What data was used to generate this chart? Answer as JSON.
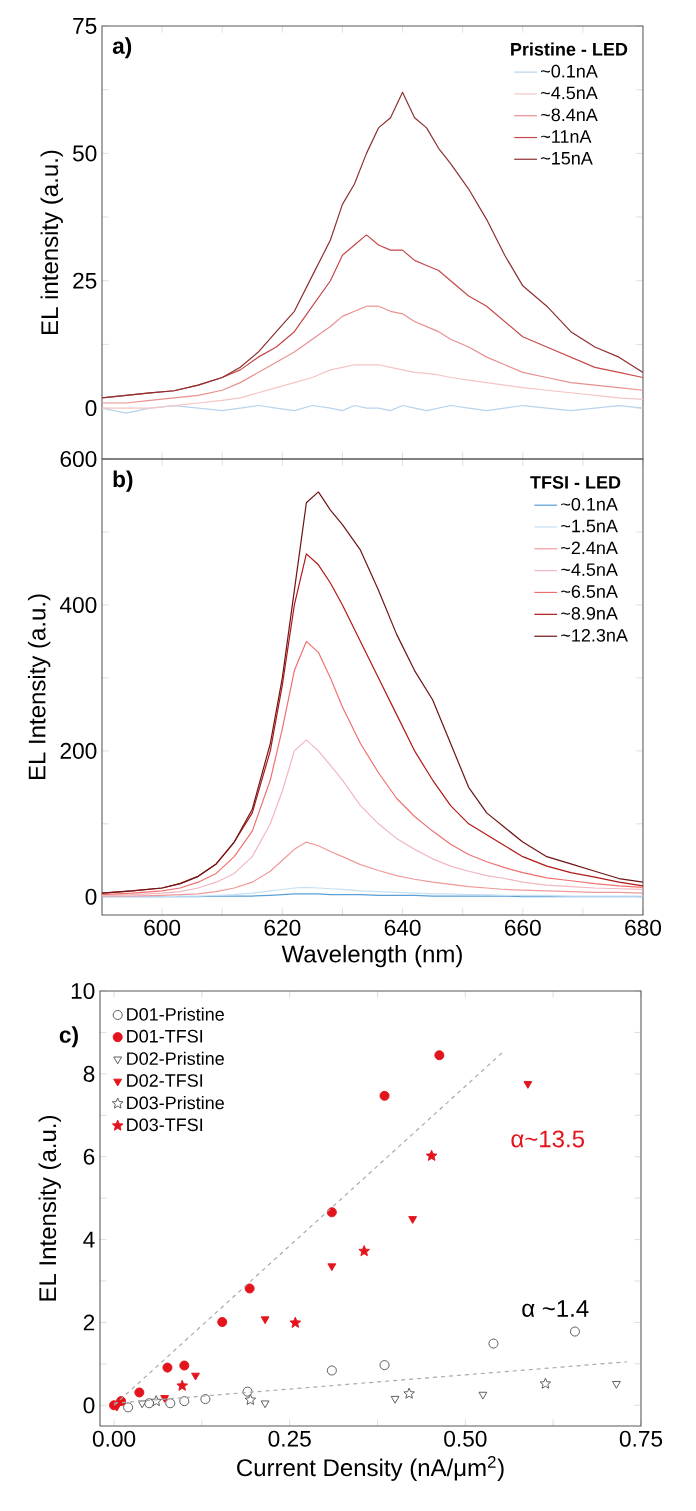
{
  "chart_data": [
    {
      "type": "line",
      "ylabel": "EL intensity (a.u.)",
      "legend_title": "Pristine - LED",
      "legend": "top right",
      "tick_labels": "y",
      "annotations": [
        "a)"
      ],
      "xlim": [
        590,
        680
      ],
      "ylim": [
        -10,
        75
      ],
      "xticks": [
        {
          "value": 600,
          "label": null
        },
        {
          "value": 610,
          "label": null
        },
        {
          "value": 620,
          "label": null
        },
        {
          "value": 630,
          "label": null
        },
        {
          "value": 640,
          "label": null
        },
        {
          "value": 650,
          "label": null
        },
        {
          "value": 660,
          "label": null
        },
        {
          "value": 670,
          "label": null
        }
      ],
      "yticks": [
        0,
        {
          "value": 12.5,
          "label": null
        },
        25,
        {
          "value": 37.5,
          "label": null
        },
        50,
        {
          "value": 62.5,
          "label": null
        },
        75
      ],
      "x": [
        590,
        594,
        598,
        602,
        606,
        610,
        613,
        616,
        619,
        622,
        625,
        628,
        630,
        632,
        634,
        636,
        638,
        640,
        642,
        644,
        646,
        648,
        651,
        654,
        657,
        660,
        664,
        668,
        672,
        676,
        680
      ],
      "series": [
        {
          "name": "~0.1nA",
          "color": "#b9d3ec",
          "values": [
            0,
            -1,
            0,
            0.5,
            0,
            -0.5,
            0,
            0.5,
            0,
            -0.5,
            0.5,
            0,
            -0.5,
            0.5,
            0,
            0,
            -0.5,
            0.5,
            0,
            -0.5,
            0,
            0.5,
            0,
            -0.5,
            0,
            0.5,
            0,
            -0.5,
            0,
            0.5,
            0
          ]
        },
        {
          "name": "~4.5nA",
          "color": "#f5c4c4",
          "values": [
            0,
            0,
            0,
            0.5,
            1,
            1.5,
            2,
            3,
            4,
            5,
            6,
            7.5,
            8,
            8.5,
            8.5,
            8.5,
            8,
            7.5,
            7,
            6.8,
            6.5,
            6,
            5.5,
            5,
            4.5,
            4,
            3.5,
            3,
            2.5,
            2,
            1.7
          ]
        },
        {
          "name": "~8.4nA",
          "color": "#e89090",
          "values": [
            1,
            1,
            1.5,
            2,
            2.5,
            3.5,
            5,
            7,
            9,
            11,
            13.5,
            16,
            18,
            19,
            20,
            20,
            19,
            18.5,
            17,
            16,
            15,
            13.5,
            12,
            10,
            8.5,
            7,
            6,
            5,
            4.5,
            4,
            3.5
          ]
        },
        {
          "name": "~11nA",
          "color": "#c84848",
          "values": [
            2,
            2.5,
            3,
            3.4,
            4.5,
            6,
            7.5,
            10,
            12,
            15,
            20,
            25,
            30,
            32,
            34,
            32,
            31,
            31,
            29,
            28,
            27,
            25,
            22,
            20,
            17,
            14,
            12,
            10,
            8,
            7,
            6
          ]
        },
        {
          "name": "~15nA",
          "color": "#8e3030",
          "values": [
            2,
            2.5,
            3,
            3.4,
            4.5,
            6,
            8,
            11,
            15,
            19,
            26,
            33,
            40,
            44,
            50,
            55,
            57,
            62,
            57,
            55,
            51,
            48,
            43,
            37,
            30,
            24,
            20,
            15,
            12,
            10,
            7
          ]
        }
      ]
    },
    {
      "type": "line",
      "xlabel": "Wavelength (nm)",
      "ylabel": "EL Intensity (a.u.)",
      "legend_title": "TFSI - LED",
      "legend": "top right",
      "annotations": [
        "b)"
      ],
      "xlim": [
        590,
        680
      ],
      "ylim": [
        -25,
        600
      ],
      "xticks": [
        600,
        {
          "value": 610,
          "label": null
        },
        620,
        {
          "value": 630,
          "label": null
        },
        640,
        {
          "value": 650,
          "label": null
        },
        660,
        {
          "value": 670,
          "label": null
        },
        680
      ],
      "yticks": [
        0,
        {
          "value": 100,
          "label": null
        },
        200,
        {
          "value": 300,
          "label": null
        },
        400,
        {
          "value": 500,
          "label": null
        },
        600
      ],
      "x": [
        590,
        595,
        600,
        603,
        606,
        609,
        612,
        615,
        618,
        620,
        622,
        624,
        626,
        628,
        630,
        633,
        636,
        639,
        642,
        645,
        648,
        651,
        654,
        657,
        660,
        664,
        668,
        672,
        676,
        680
      ],
      "series": [
        {
          "name": "~0.1nA",
          "color": "#5a9fd6",
          "values": [
            0,
            0,
            0,
            0,
            0,
            1,
            1,
            1,
            2,
            3,
            4,
            4,
            4,
            3,
            3,
            3,
            2,
            2,
            2,
            1,
            1,
            1,
            1,
            1,
            0,
            0,
            0,
            0,
            0,
            0
          ]
        },
        {
          "name": "~1.5nA",
          "color": "#c6e0f4",
          "values": [
            0,
            0,
            0,
            1,
            1,
            2,
            3,
            5,
            8,
            10,
            12,
            13,
            12,
            11,
            10,
            8,
            7,
            6,
            5,
            4,
            4,
            3,
            3,
            2,
            2,
            2,
            1,
            1,
            1,
            1
          ]
        },
        {
          "name": "~2.4nA",
          "color": "#ef9a9a",
          "values": [
            1,
            1,
            2,
            3,
            4,
            7,
            12,
            20,
            35,
            50,
            65,
            75,
            70,
            62,
            55,
            44,
            36,
            29,
            24,
            20,
            17,
            14,
            12,
            10,
            9,
            8,
            7,
            6,
            6,
            5
          ]
        },
        {
          "name": "~4.5nA",
          "color": "#f2b6c0",
          "values": [
            2,
            3,
            5,
            7,
            12,
            20,
            32,
            55,
            100,
            145,
            200,
            215,
            200,
            180,
            160,
            125,
            100,
            80,
            65,
            52,
            42,
            35,
            29,
            25,
            20,
            16,
            14,
            12,
            11,
            10
          ]
        },
        {
          "name": "~6.5nA",
          "color": "#f07070",
          "values": [
            3,
            5,
            8,
            12,
            20,
            32,
            55,
            90,
            160,
            230,
            310,
            350,
            335,
            300,
            260,
            210,
            170,
            135,
            110,
            90,
            72,
            58,
            48,
            40,
            33,
            26,
            22,
            18,
            15,
            13
          ]
        },
        {
          "name": "~8.9nA",
          "color": "#b01818",
          "values": [
            5,
            8,
            12,
            18,
            28,
            45,
            75,
            115,
            200,
            290,
            400,
            470,
            455,
            430,
            400,
            350,
            300,
            250,
            200,
            160,
            125,
            100,
            85,
            70,
            55,
            42,
            33,
            27,
            20,
            15
          ]
        },
        {
          "name": "~12.3nA",
          "color": "#6e1414",
          "values": [
            5,
            8,
            12,
            18,
            28,
            45,
            75,
            120,
            210,
            300,
            420,
            540,
            555,
            530,
            510,
            475,
            420,
            360,
            310,
            270,
            210,
            150,
            115,
            95,
            75,
            55,
            45,
            35,
            25,
            20
          ]
        }
      ]
    },
    {
      "type": "scatter",
      "xlabel": "Current Density (nA/μm$^{2}$)",
      "ylabel": "EL Intensity (a.u.)",
      "legend": "top left",
      "annotations": [
        "c)",
        "α~13.5",
        "α ~1.4"
      ],
      "xlim": [
        -0.02,
        0.75
      ],
      "ylim": [
        -0.5,
        10
      ],
      "xticks": [
        {
          "value": 0,
          "label": "0.00"
        },
        {
          "value": 0.125,
          "label": null
        },
        {
          "value": 0.25,
          "label": "0.25"
        },
        {
          "value": 0.375,
          "label": null
        },
        {
          "value": 0.5,
          "label": "0.50"
        },
        {
          "value": 0.625,
          "label": null
        },
        {
          "value": 0.75,
          "label": "0.75"
        }
      ],
      "yticks": [
        0,
        {
          "value": 1,
          "label": null
        },
        2,
        {
          "value": 3,
          "label": null
        },
        4,
        {
          "value": 5,
          "label": null
        },
        6,
        {
          "value": 7,
          "label": null
        },
        8,
        {
          "value": 9,
          "label": null
        },
        10
      ],
      "series": [
        {
          "name": "D01-Pristine",
          "color": "#555555",
          "marker": "circle",
          "x": [
            0.02,
            0.05,
            0.08,
            0.1,
            0.13,
            0.19,
            0.31,
            0.385,
            0.54,
            0.656
          ],
          "values": [
            -0.05,
            0.05,
            0.05,
            0.1,
            0.15,
            0.33,
            0.84,
            0.97,
            1.49,
            1.78
          ]
        },
        {
          "name": "D01-TFSI",
          "color": "#e3141c",
          "marker": "circle",
          "x": [
            0.0,
            0.01,
            0.036,
            0.076,
            0.1,
            0.154,
            0.193,
            0.31,
            0.385,
            0.463
          ],
          "values": [
            0,
            0.1,
            0.31,
            0.91,
            0.96,
            2.01,
            2.82,
            4.66,
            7.47,
            8.45
          ]
        },
        {
          "name": "D02-Pristine",
          "color": "#555555",
          "marker": "triangle",
          "x": [
            0.04,
            0.215,
            0.4,
            0.525,
            0.715
          ],
          "values": [
            0.05,
            0.05,
            0.16,
            0.26,
            0.52
          ]
        },
        {
          "name": "D02-TFSI",
          "color": "#e3141c",
          "marker": "triangle",
          "x": [
            0.004,
            0.072,
            0.116,
            0.215,
            0.31,
            0.425,
            0.589
          ],
          "values": [
            -0.03,
            0.18,
            0.72,
            2.08,
            3.36,
            4.5,
            7.76
          ]
        },
        {
          "name": "D03-Pristine",
          "color": "#555555",
          "marker": "star",
          "x": [
            0.06,
            0.194,
            0.42,
            0.614
          ],
          "values": [
            0.1,
            0.13,
            0.28,
            0.52
          ]
        },
        {
          "name": "D03-TFSI",
          "color": "#e3141c",
          "marker": "star",
          "x": [
            0.097,
            0.258,
            0.356,
            0.452
          ],
          "values": [
            0.47,
            1.99,
            3.72,
            6.02
          ]
        },
        {
          "type": "line",
          "color": "#aaaaaa",
          "line_style": "dashed",
          "marker": "none",
          "x": [
            0,
            0.555
          ],
          "values": [
            0,
            8.55
          ]
        },
        {
          "type": "line",
          "color": "#aaaaaa",
          "line_style": "dashed",
          "marker": "none",
          "x": [
            0,
            0.73
          ],
          "values": [
            0.05,
            1.05
          ]
        }
      ]
    }
  ]
}
